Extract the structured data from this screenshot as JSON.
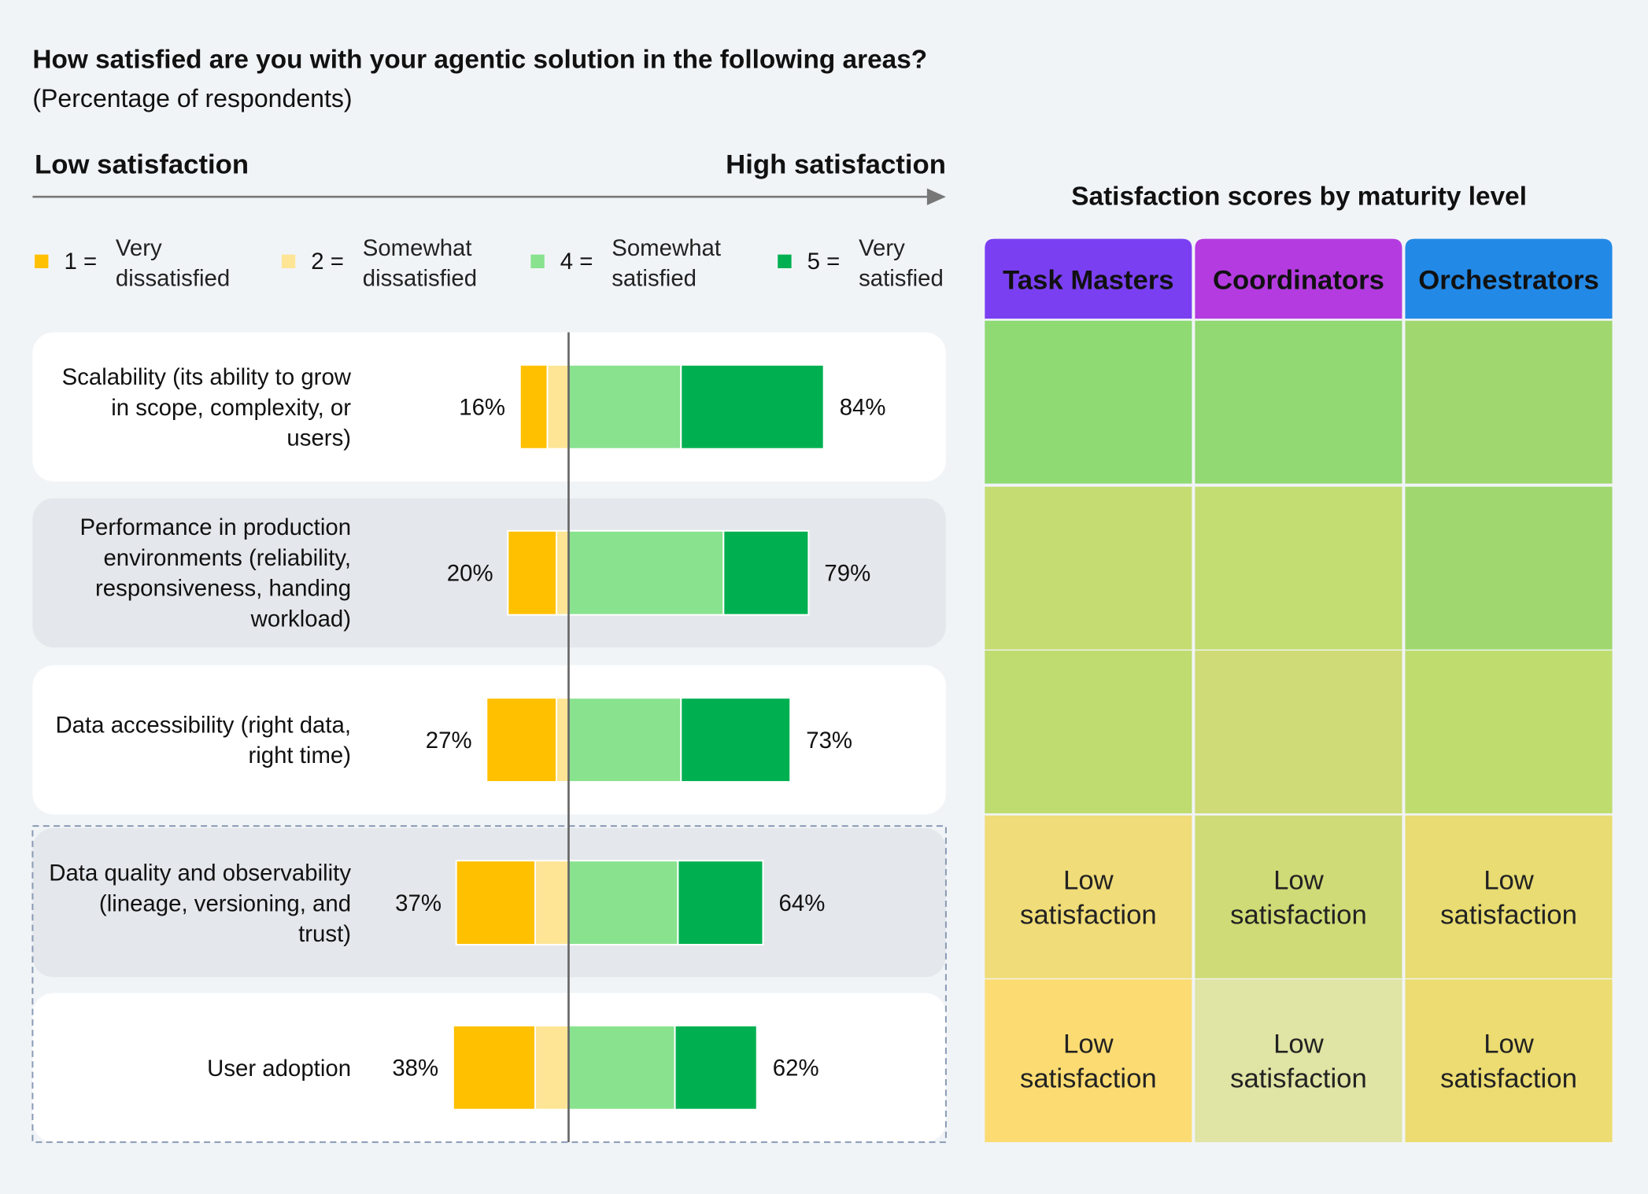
{
  "chart_data": {
    "type": "diverging_bar",
    "title": "How satisfied are you with your agentic solution in the following areas?",
    "subtitle": "(Percentage of respondents)",
    "axis_low_label": "Low satisfaction",
    "axis_high_label": "High satisfaction",
    "categories": [
      "Scalability (its ability to grow in scope, complexity, or users)",
      "Performance in production environments (reliability, responsiveness, handing workload)",
      "Data accessibility (right data, right time)",
      "Data quality and observability (lineage, versioning, and trust)",
      "User adoption"
    ],
    "series": [
      {
        "key": "1 =",
        "name": "Very dissatisfied",
        "color": "#ffc000",
        "side": "low",
        "values": [
          9,
          16,
          23,
          26,
          27
        ]
      },
      {
        "key": "2 =",
        "name": "Somewhat dissatisfied",
        "color": "#fde595",
        "side": "low",
        "values": [
          7,
          4,
          4,
          11,
          11
        ]
      },
      {
        "key": "4 =",
        "name": "Somewhat satisfied",
        "color": "#88e28e",
        "side": "high",
        "values": [
          37,
          51,
          37,
          36,
          35
        ]
      },
      {
        "key": "5 =",
        "name": "Very satisfied",
        "color": "#00b050",
        "side": "high",
        "values": [
          47,
          28,
          36,
          28,
          27
        ]
      }
    ],
    "low_totals": {
      "values": [
        16,
        20,
        27,
        37,
        38
      ],
      "value_labels": [
        "16%",
        "20%",
        "27%",
        "37%",
        "38%"
      ]
    },
    "high_totals": {
      "values": [
        84,
        79,
        73,
        64,
        62
      ],
      "value_labels": [
        "84%",
        "79%",
        "73%",
        "64%",
        "62%"
      ]
    },
    "heatmap": {
      "title": "Satisfaction scores by maturity level",
      "columns": [
        {
          "name": "Task Masters",
          "color": "#7b3ff2"
        },
        {
          "name": "Coordinators",
          "color": "#b43be0"
        },
        {
          "name": "Orchestrators",
          "color": "#2389e6"
        }
      ],
      "cell_colors": [
        [
          "#8fda73",
          "#92d873",
          "#a0d86f"
        ],
        [
          "#c5dc72",
          "#c3dd72",
          "#a0d86f"
        ],
        [
          "#bedc6f",
          "#cfdb76",
          "#bfdd6f"
        ],
        [
          "#f0dc78",
          "#cfdb76",
          "#e8dc72"
        ],
        [
          "#fcdc72",
          "#e0e4a4",
          "#ecdc72"
        ]
      ],
      "cell_labels": [
        [
          null,
          null,
          null
        ],
        [
          null,
          null,
          null
        ],
        [
          null,
          null,
          null
        ],
        [
          "Low satisfaction",
          "Low satisfaction",
          "Low satisfaction"
        ],
        [
          "Low satisfaction",
          "Low satisfaction",
          "Low satisfaction"
        ]
      ]
    }
  }
}
